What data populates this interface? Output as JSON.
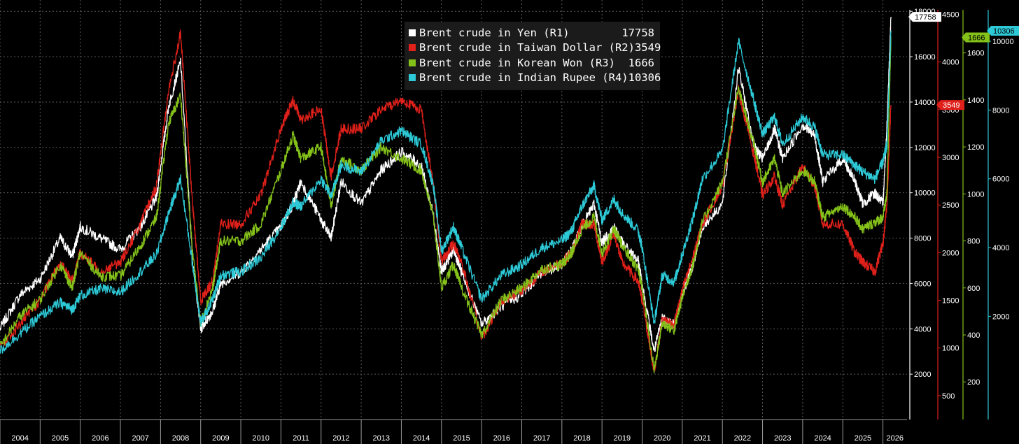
{
  "chart_data": {
    "type": "line",
    "title": "",
    "x_ticks": [
      "2004",
      "2005",
      "2006",
      "2007",
      "2008",
      "2009",
      "2010",
      "2011",
      "2012",
      "2013",
      "2014",
      "2015",
      "2016",
      "2017",
      "2018",
      "2019",
      "2020",
      "2021",
      "2022",
      "2023",
      "2024",
      "2025",
      "2026"
    ],
    "x_range": [
      2004.0,
      2026.6
    ],
    "grid": true,
    "legend_placement": "top-center",
    "axes": [
      {
        "id": "R1",
        "color": "#ffffff",
        "range": [
          0,
          18500
        ],
        "ticks": [
          "2000",
          "4000",
          "6000",
          "8000",
          "10000",
          "12000",
          "14000",
          "16000",
          "18000"
        ]
      },
      {
        "id": "R2",
        "color": "#e0201a",
        "range": [
          250,
          4650
        ],
        "ticks": [
          "500",
          "1000",
          "1500",
          "2000",
          "2500",
          "3000",
          "3500",
          "4000",
          "4500"
        ]
      },
      {
        "id": "R3",
        "color": "#84c21a",
        "range": [
          40,
          1825
        ],
        "ticks": [
          "200",
          "400",
          "600",
          "800",
          "1000",
          "1200",
          "1400",
          "1600"
        ]
      },
      {
        "id": "R4",
        "color": "#2dc9d6",
        "range": [
          -1000,
          11200
        ],
        "ticks": [
          "2000",
          "4000",
          "6000",
          "8000",
          "10000"
        ]
      }
    ],
    "series": [
      {
        "name": "Brent crude in Yen (R1)",
        "axis": "R1",
        "color": "#ffffff",
        "last": "17758",
        "x": [
          2004.0,
          2004.5,
          2005.0,
          2005.5,
          2005.8,
          2006.0,
          2006.5,
          2007.0,
          2007.5,
          2007.9,
          2008.2,
          2008.5,
          2008.8,
          2009.0,
          2009.3,
          2009.5,
          2010.0,
          2010.5,
          2011.0,
          2011.3,
          2011.5,
          2012.0,
          2012.25,
          2012.5,
          2013.0,
          2013.5,
          2014.0,
          2014.5,
          2014.8,
          2015.0,
          2015.3,
          2015.5,
          2016.0,
          2016.5,
          2017.0,
          2017.5,
          2018.0,
          2018.25,
          2018.5,
          2018.8,
          2019.0,
          2019.3,
          2019.5,
          2019.9,
          2020.0,
          2020.3,
          2020.5,
          2020.8,
          2021.0,
          2021.3,
          2021.5,
          2022.0,
          2022.4,
          2022.8,
          2023.0,
          2023.3,
          2023.5,
          2024.0,
          2024.3,
          2024.5,
          2025.0,
          2025.3,
          2025.5,
          2025.8,
          2026.0,
          2026.1,
          2026.2
        ],
        "y": [
          4000,
          5500,
          6200,
          8000,
          7200,
          8500,
          8000,
          7500,
          8500,
          9800,
          13800,
          15800,
          7000,
          4000,
          4800,
          6000,
          6500,
          7500,
          8500,
          9500,
          10500,
          8800,
          8000,
          10500,
          9500,
          11000,
          11800,
          11200,
          9000,
          6500,
          7500,
          6500,
          4200,
          5000,
          5500,
          6500,
          6800,
          7500,
          8500,
          9500,
          7800,
          8500,
          7800,
          7000,
          6000,
          3000,
          4500,
          4200,
          5500,
          7000,
          8500,
          9500,
          15500,
          12000,
          11500,
          12800,
          11500,
          13000,
          12500,
          10500,
          11500,
          10500,
          9500,
          10000,
          9500,
          13000,
          17758
        ]
      },
      {
        "name": "Brent crude in Taiwan Dollar (R2)",
        "axis": "R2",
        "color": "#e0201a",
        "last": "3549",
        "x": [
          2004.0,
          2004.5,
          2005.0,
          2005.5,
          2005.8,
          2006.0,
          2006.5,
          2007.0,
          2007.5,
          2007.9,
          2008.2,
          2008.5,
          2008.8,
          2009.0,
          2009.3,
          2009.5,
          2010.0,
          2010.5,
          2011.0,
          2011.3,
          2011.5,
          2012.0,
          2012.25,
          2012.5,
          2013.0,
          2013.5,
          2014.0,
          2014.5,
          2014.8,
          2015.0,
          2015.3,
          2015.5,
          2016.0,
          2016.5,
          2017.0,
          2017.5,
          2018.0,
          2018.25,
          2018.5,
          2018.8,
          2019.0,
          2019.3,
          2019.5,
          2019.9,
          2020.0,
          2020.3,
          2020.5,
          2020.8,
          2021.0,
          2021.3,
          2021.5,
          2022.0,
          2022.4,
          2022.8,
          2023.0,
          2023.3,
          2023.5,
          2024.0,
          2024.3,
          2024.5,
          2025.0,
          2025.3,
          2025.5,
          2025.8,
          2026.0,
          2026.1,
          2026.2
        ],
        "y": [
          1000,
          1250,
          1500,
          1900,
          1700,
          2000,
          1800,
          1900,
          2300,
          2700,
          3700,
          4300,
          2500,
          1500,
          1700,
          2300,
          2300,
          2600,
          3300,
          3600,
          3400,
          3500,
          2800,
          3300,
          3300,
          3500,
          3600,
          3500,
          2700,
          1900,
          2100,
          1900,
          1100,
          1500,
          1600,
          1800,
          1900,
          2000,
          2300,
          2300,
          1900,
          2200,
          1900,
          1700,
          1500,
          750,
          1300,
          1250,
          1600,
          2000,
          2300,
          2700,
          3700,
          3000,
          2600,
          2800,
          2500,
          2900,
          2700,
          2300,
          2300,
          2000,
          1900,
          1800,
          2100,
          2500,
          3549
        ]
      },
      {
        "name": "Brent crude in Korean Won (R3)",
        "axis": "R3",
        "color": "#84c21a",
        "last": "1666",
        "x": [
          2004.0,
          2004.5,
          2005.0,
          2005.5,
          2005.8,
          2006.0,
          2006.5,
          2007.0,
          2007.5,
          2007.9,
          2008.2,
          2008.5,
          2008.8,
          2009.0,
          2009.3,
          2009.5,
          2010.0,
          2010.5,
          2011.0,
          2011.3,
          2011.5,
          2012.0,
          2012.25,
          2012.5,
          2013.0,
          2013.5,
          2014.0,
          2014.5,
          2014.8,
          2015.0,
          2015.3,
          2015.5,
          2016.0,
          2016.5,
          2017.0,
          2017.5,
          2018.0,
          2018.25,
          2018.5,
          2018.8,
          2019.0,
          2019.3,
          2019.5,
          2019.9,
          2020.0,
          2020.3,
          2020.5,
          2020.8,
          2021.0,
          2021.3,
          2021.5,
          2022.0,
          2022.4,
          2022.8,
          2023.0,
          2023.3,
          2023.5,
          2024.0,
          2024.3,
          2024.5,
          2025.0,
          2025.3,
          2025.5,
          2025.8,
          2026.0,
          2026.1,
          2026.2
        ],
        "y": [
          350,
          480,
          550,
          700,
          600,
          750,
          650,
          650,
          780,
          900,
          1300,
          1420,
          750,
          450,
          600,
          800,
          800,
          870,
          1100,
          1250,
          1150,
          1200,
          950,
          1150,
          1100,
          1200,
          1150,
          1100,
          900,
          600,
          700,
          600,
          400,
          550,
          600,
          680,
          700,
          750,
          850,
          900,
          750,
          850,
          780,
          680,
          600,
          250,
          450,
          420,
          560,
          720,
          880,
          1050,
          1450,
          1200,
          1050,
          1150,
          1000,
          1100,
          1050,
          900,
          950,
          900,
          850,
          880,
          900,
          1000,
          1666
        ]
      },
      {
        "name": "Brent crude in Indian Rupee (R4)",
        "axis": "R4",
        "color": "#2dc9d6",
        "last": "10306",
        "x": [
          2004.0,
          2004.5,
          2005.0,
          2005.5,
          2005.8,
          2006.0,
          2006.5,
          2007.0,
          2007.5,
          2007.9,
          2008.2,
          2008.5,
          2008.8,
          2009.0,
          2009.3,
          2009.5,
          2010.0,
          2010.5,
          2011.0,
          2011.3,
          2011.5,
          2012.0,
          2012.25,
          2012.5,
          2013.0,
          2013.5,
          2014.0,
          2014.5,
          2014.8,
          2015.0,
          2015.3,
          2015.5,
          2016.0,
          2016.5,
          2017.0,
          2017.5,
          2018.0,
          2018.25,
          2018.5,
          2018.8,
          2019.0,
          2019.3,
          2019.5,
          2019.9,
          2020.0,
          2020.3,
          2020.5,
          2020.8,
          2021.0,
          2021.3,
          2021.5,
          2022.0,
          2022.4,
          2022.8,
          2023.0,
          2023.3,
          2023.5,
          2024.0,
          2024.3,
          2024.5,
          2025.0,
          2025.3,
          2025.5,
          2025.8,
          2026.0,
          2026.1,
          2026.2
        ],
        "y": [
          1000,
          1500,
          2000,
          2400,
          2200,
          2600,
          2800,
          2700,
          3300,
          3800,
          5000,
          6000,
          3500,
          1800,
          2500,
          3200,
          3300,
          3700,
          4600,
          5300,
          5200,
          6000,
          5500,
          6400,
          6200,
          7100,
          7400,
          7000,
          5800,
          3900,
          4600,
          4000,
          2500,
          3200,
          3500,
          4000,
          4200,
          4500,
          5200,
          5800,
          4800,
          5400,
          5000,
          4500,
          4000,
          1800,
          3200,
          3000,
          3800,
          5000,
          6000,
          6800,
          10000,
          8200,
          7300,
          7800,
          7000,
          7800,
          7500,
          6700,
          6700,
          6400,
          6200,
          6000,
          6500,
          7000,
          10306
        ]
      }
    ]
  }
}
